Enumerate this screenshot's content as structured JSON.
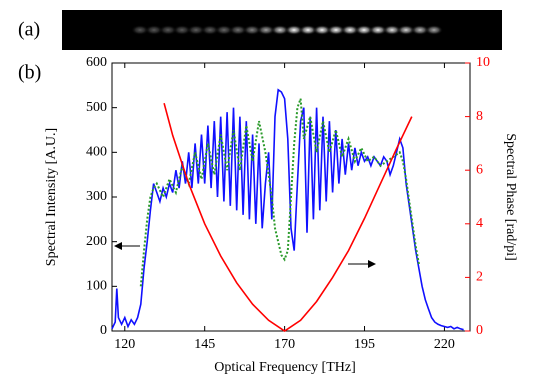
{
  "panel_labels": [
    "(a)",
    "(b)"
  ],
  "chart_data": {
    "type": "line",
    "xlabel": "Optical Frequency [THz]",
    "ylabel": "Spectral Intensity [A.U.]",
    "y2label": "Spectral Phase [rad/pi]",
    "xlim": [
      116,
      228
    ],
    "xticks": [
      120,
      145,
      170,
      195,
      220
    ],
    "ylim": [
      0,
      600
    ],
    "yticks": [
      0,
      100,
      200,
      300,
      400,
      500,
      600
    ],
    "y2lim": [
      0,
      10
    ],
    "y2ticks": [
      0,
      2,
      4,
      6,
      8,
      10
    ],
    "y2color": "#ff0000",
    "series": [
      {
        "color": "#1010ff",
        "style": "solid",
        "x": [
          116,
          117,
          117.5,
          118,
          119,
          120,
          121,
          122,
          123,
          124,
          125,
          126,
          127,
          128,
          129,
          130,
          131,
          132,
          133,
          134,
          135,
          136,
          137,
          138,
          139,
          140,
          141,
          142,
          143,
          144,
          145,
          146,
          147,
          148,
          149,
          150,
          151,
          152,
          153,
          154,
          155,
          156,
          157,
          158,
          159,
          160,
          161,
          162,
          163,
          164,
          165,
          166,
          167,
          168,
          169,
          170,
          171,
          172,
          173,
          174,
          175,
          176,
          177,
          178,
          179,
          180,
          181,
          182,
          183,
          184,
          185,
          186,
          187,
          188,
          189,
          190,
          191,
          192,
          193,
          194,
          195,
          196,
          197,
          198,
          199,
          200,
          201,
          202,
          203,
          204,
          205,
          206,
          207,
          208,
          209,
          210,
          211,
          212,
          213,
          214,
          215,
          216,
          217,
          218,
          219,
          220,
          221,
          222,
          223,
          224,
          225,
          226
        ],
        "values": [
          5,
          20,
          95,
          30,
          15,
          30,
          10,
          25,
          15,
          30,
          60,
          140,
          200,
          270,
          330,
          310,
          290,
          320,
          300,
          330,
          310,
          360,
          320,
          380,
          330,
          400,
          320,
          420,
          330,
          440,
          330,
          460,
          320,
          470,
          300,
          480,
          290,
          490,
          280,
          500,
          270,
          480,
          260,
          470,
          250,
          440,
          240,
          420,
          230,
          330,
          400,
          250,
          480,
          540,
          535,
          520,
          430,
          230,
          180,
          330,
          470,
          500,
          220,
          480,
          250,
          500,
          270,
          480,
          290,
          470,
          310,
          450,
          330,
          430,
          350,
          420,
          360,
          410,
          370,
          400,
          380,
          390,
          370,
          390,
          380,
          370,
          390,
          380,
          350,
          370,
          400,
          430,
          410,
          330,
          280,
          230,
          180,
          140,
          100,
          70,
          50,
          30,
          20,
          15,
          12,
          10,
          8,
          10,
          5,
          8,
          5,
          3
        ]
      },
      {
        "color": "#2a9a2a",
        "style": "dotted",
        "x": [
          125,
          126,
          127,
          128,
          129,
          130,
          132,
          134,
          136,
          138,
          140,
          142,
          144,
          146,
          148,
          150,
          152,
          154,
          156,
          158,
          160,
          162,
          164,
          166,
          167,
          168,
          169,
          170,
          171,
          172,
          173,
          174,
          175,
          176,
          178,
          180,
          182,
          184,
          186,
          188,
          190,
          192,
          194,
          196,
          198,
          200,
          202,
          204,
          206,
          207,
          208,
          209,
          210,
          211,
          212
        ],
        "values": [
          100,
          180,
          250,
          300,
          320,
          330,
          300,
          340,
          310,
          370,
          330,
          400,
          340,
          420,
          350,
          440,
          360,
          450,
          360,
          460,
          380,
          470,
          400,
          300,
          230,
          200,
          170,
          160,
          180,
          300,
          420,
          500,
          520,
          430,
          480,
          400,
          470,
          400,
          450,
          390,
          430,
          380,
          410,
          380,
          390,
          370,
          380,
          390,
          400,
          380,
          340,
          290,
          240,
          190,
          150
        ]
      },
      {
        "color": "#ff0000",
        "style": "solid",
        "axis": "y2",
        "x": [
          132.3,
          135,
          140,
          145,
          150,
          155,
          160,
          165,
          170,
          175,
          180,
          185,
          190,
          195,
          200,
          205,
          209.8
        ],
        "values": [
          8.5,
          7.3,
          5.5,
          4.0,
          2.8,
          1.8,
          1.0,
          0.4,
          0,
          0.4,
          1.1,
          2.0,
          3.0,
          4.2,
          5.5,
          6.8,
          8.0
        ]
      }
    ]
  }
}
